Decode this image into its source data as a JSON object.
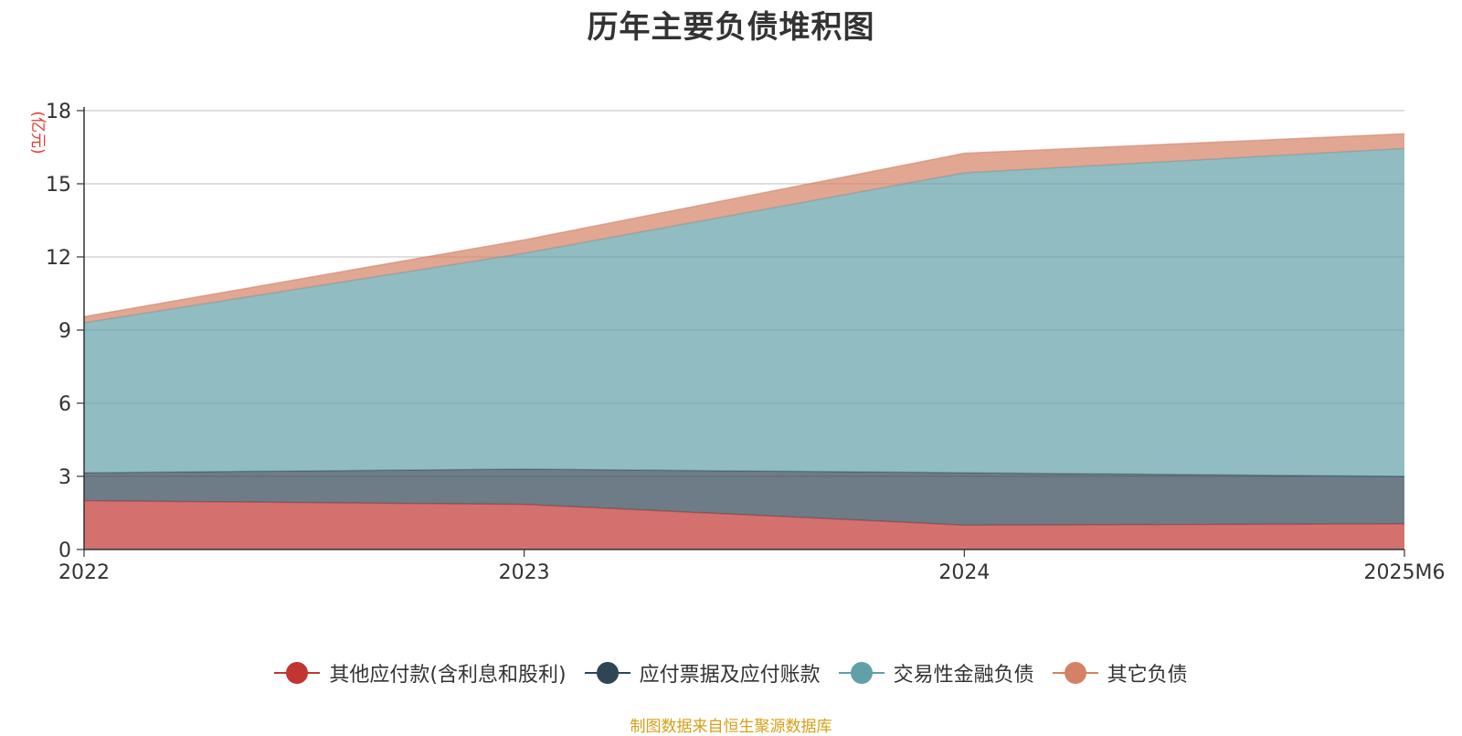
{
  "title": "历年主要负债堆积图",
  "source_note": "制图数据来自恒生聚源数据库",
  "chart_data": {
    "type": "area",
    "stacked": true,
    "ylabel": "(亿元)",
    "xlabel": "",
    "ylim": [
      0,
      18
    ],
    "yticks": [
      0,
      3,
      6,
      9,
      12,
      15,
      18
    ],
    "categories": [
      "2022",
      "2023",
      "2024",
      "2025M6"
    ],
    "grid": true,
    "legend_position": "bottom",
    "series": [
      {
        "name": "其他应付款(含利息和股利)",
        "color": "#c23531",
        "values": [
          2.0,
          1.85,
          1.0,
          1.05
        ]
      },
      {
        "name": "应付票据及应付账款",
        "color": "#2f4554",
        "values": [
          1.15,
          1.45,
          2.15,
          1.95
        ]
      },
      {
        "name": "交易性金融负债",
        "color": "#61a0a8",
        "values": [
          6.15,
          8.85,
          12.3,
          13.45
        ]
      },
      {
        "name": "其它负债",
        "color": "#d48265",
        "values": [
          0.25,
          0.55,
          0.8,
          0.6
        ]
      }
    ]
  }
}
